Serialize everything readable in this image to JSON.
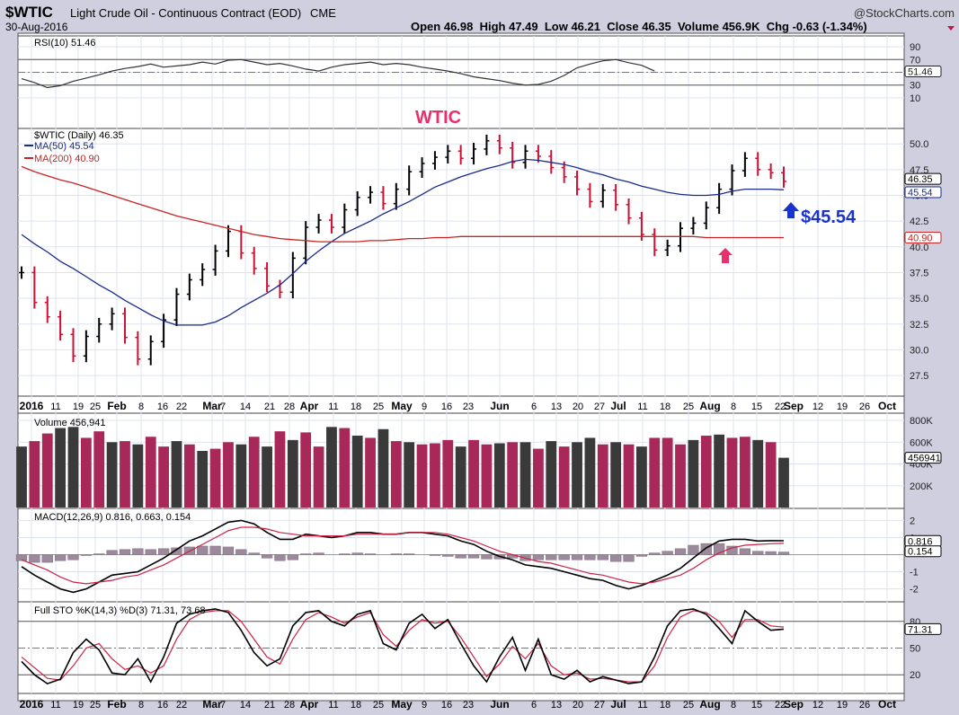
{
  "header": {
    "symbol": "$WTIC",
    "description": "Light Crude Oil - Continuous Contract (EOD)",
    "exchange": "CME",
    "brand": "@StockCharts.com",
    "date": "30-Aug-2016",
    "ohlc": "Open 46.98  High 47.49  Low 46.21  Close 46.35  Volume 456.9K  Chg -0.63 (-1.34%)"
  },
  "annotations": {
    "title": "WTIC",
    "price_callout": "$45.54",
    "colors": {
      "title": "#e8306c",
      "callout": "#1a33cc",
      "up_arrow": "#1a33cc",
      "pink_arrow": "#e8306c"
    }
  },
  "x_axis_labels": [
    "2016",
    "11",
    "19",
    "25",
    "Feb",
    "8",
    "16",
    "22",
    "Mar",
    "7",
    "14",
    "21",
    "28",
    "Apr",
    "11",
    "18",
    "25",
    "May",
    "9",
    "16",
    "23",
    "Jun",
    "6",
    "13",
    "20",
    "27",
    "Jul",
    "11",
    "18",
    "25",
    "Aug",
    "8",
    "15",
    "22",
    "Sep",
    "12",
    "19",
    "26",
    "Oct"
  ],
  "chart_data": [
    {
      "panel": "rsi",
      "type": "line",
      "legend": "RSI(10) 51.46",
      "last_value_label": "51.46",
      "ylim": [
        0,
        100
      ],
      "y_ticks": [
        90,
        70,
        50,
        30,
        10
      ],
      "y_tick_labels": [
        "90",
        "70",
        "50",
        "30",
        "10"
      ],
      "reference_lines": [
        70,
        30
      ],
      "series": [
        {
          "name": "RSI(10)",
          "values": [
            40,
            34,
            26,
            29,
            36,
            41,
            46,
            52,
            56,
            59,
            63,
            58,
            60,
            62,
            66,
            63,
            69,
            70,
            66,
            62,
            64,
            60,
            55,
            52,
            58,
            62,
            64,
            66,
            62,
            64,
            62,
            58,
            55,
            52,
            48,
            43,
            40,
            37,
            33,
            30,
            31,
            36,
            45,
            57,
            63,
            68,
            70,
            65,
            61,
            52
          ]
        }
      ]
    },
    {
      "panel": "price",
      "type": "candlestick",
      "legend": [
        "$WTIC (Daily) 46.35",
        "MA(50) 45.54",
        "MA(200) 40.90"
      ],
      "last_value_labels": [
        "46.35",
        "45.54",
        "40.90"
      ],
      "ylim": [
        25.5,
        51.5
      ],
      "y_ticks": [
        50.0,
        47.5,
        45.0,
        42.5,
        40.0,
        37.5,
        35.0,
        32.5,
        30.0,
        27.5
      ],
      "y_tick_labels": [
        "50.0",
        "47.5",
        "45.0",
        "42.5",
        "40.0",
        "37.5",
        "35.0",
        "32.5",
        "30.0",
        "27.5"
      ],
      "close": [
        37.5,
        34.6,
        33.2,
        31.5,
        29.4,
        31.3,
        32.5,
        33.5,
        31.2,
        29.1,
        30.8,
        32.9,
        35.4,
        36.8,
        37.8,
        39.6,
        41.5,
        39.4,
        37.9,
        36.2,
        35.6,
        38.9,
        41.9,
        42.6,
        41.9,
        43.6,
        44.8,
        45.3,
        44.2,
        45.6,
        47.3,
        48.1,
        48.7,
        49.3,
        48.6,
        49.5,
        50.3,
        49.6,
        48.2,
        49.3,
        48.8,
        47.7,
        46.8,
        45.6,
        44.4,
        45.5,
        44.1,
        42.8,
        41.2,
        39.7,
        40.1,
        41.8,
        42.3,
        43.8,
        45.6,
        47.4,
        48.6,
        47.5,
        47.2,
        46.35
      ],
      "ma50": [
        41.2,
        40.3,
        39.5,
        38.6,
        37.9,
        37.1,
        36.3,
        35.6,
        34.8,
        34.1,
        33.4,
        32.8,
        32.4,
        32.4,
        32.4,
        32.7,
        33.3,
        34.1,
        34.8,
        35.5,
        36.3,
        37.4,
        38.6,
        39.6,
        40.5,
        41.3,
        41.9,
        42.5,
        43.2,
        43.8,
        44.4,
        45.1,
        45.8,
        46.3,
        46.8,
        47.2,
        47.6,
        47.9,
        48.3,
        48.5,
        48.4,
        48.2,
        48.0,
        47.7,
        47.3,
        47.0,
        46.6,
        46.3,
        45.9,
        45.6,
        45.3,
        45.1,
        45.0,
        45.0,
        45.1,
        45.4,
        45.6,
        45.6,
        45.6,
        45.54
      ],
      "ma200": [
        47.8,
        47.3,
        46.9,
        46.5,
        46.2,
        45.8,
        45.4,
        45.0,
        44.6,
        44.2,
        43.8,
        43.4,
        43.0,
        42.7,
        42.4,
        42.1,
        41.8,
        41.5,
        41.2,
        41.0,
        40.8,
        40.7,
        40.6,
        40.5,
        40.5,
        40.5,
        40.5,
        40.6,
        40.6,
        40.7,
        40.8,
        40.8,
        40.9,
        40.9,
        41.0,
        41.0,
        41.0,
        41.0,
        41.0,
        41.0,
        41.0,
        41.0,
        41.0,
        41.0,
        41.0,
        41.0,
        41.0,
        41.0,
        41.0,
        41.0,
        41.0,
        41.0,
        41.0,
        40.9,
        40.9,
        40.9,
        40.9,
        40.9,
        40.9,
        40.9
      ]
    },
    {
      "panel": "volume",
      "type": "bar",
      "legend": "Volume 456,941",
      "last_value_label": "456941",
      "ylim": [
        0,
        850000
      ],
      "y_ticks": [
        800000,
        600000,
        400000,
        200000
      ],
      "y_tick_labels": [
        "800K",
        "600K",
        "400K",
        "200K"
      ],
      "values": [
        560000,
        610000,
        680000,
        730000,
        740000,
        640000,
        700000,
        600000,
        610000,
        580000,
        650000,
        560000,
        610000,
        580000,
        520000,
        540000,
        600000,
        580000,
        650000,
        560000,
        700000,
        620000,
        690000,
        560000,
        740000,
        730000,
        660000,
        640000,
        720000,
        610000,
        600000,
        580000,
        590000,
        620000,
        560000,
        620000,
        580000,
        590000,
        600000,
        600000,
        540000,
        610000,
        560000,
        600000,
        640000,
        580000,
        600000,
        580000,
        560000,
        640000,
        640000,
        580000,
        620000,
        660000,
        670000,
        640000,
        650000,
        620000,
        600000,
        456941
      ],
      "up": [
        false,
        true,
        true,
        false,
        false,
        true,
        true,
        false,
        true,
        false,
        true,
        true,
        false,
        true,
        false,
        true,
        true,
        false,
        true,
        false,
        true,
        false,
        true,
        true,
        false,
        true,
        false,
        true,
        false,
        true,
        false,
        true,
        true,
        true,
        false,
        true,
        true,
        false,
        true,
        false,
        true,
        false,
        true,
        false,
        false,
        true,
        false,
        true,
        false,
        true,
        true,
        true,
        false,
        true,
        false,
        true,
        true,
        false,
        true,
        false
      ]
    },
    {
      "panel": "macd",
      "type": "line",
      "legend": "MACD(12,26,9) 0.816, 0.663, 0.154",
      "last_value_labels": [
        "0.816",
        "0.154"
      ],
      "ylim": [
        -2.6,
        2.6
      ],
      "y_ticks": [
        2,
        1,
        -1,
        -2
      ],
      "y_tick_labels": [
        "2",
        "1",
        "-1",
        "-2"
      ],
      "series": [
        {
          "name": "MACD",
          "values": [
            -0.7,
            -1.2,
            -1.6,
            -2.0,
            -2.2,
            -2.0,
            -1.6,
            -1.2,
            -1.1,
            -1.0,
            -0.6,
            -0.2,
            0.3,
            0.8,
            1.1,
            1.5,
            1.9,
            2.0,
            1.8,
            1.3,
            0.9,
            0.9,
            1.2,
            1.1,
            1.0,
            1.1,
            1.3,
            1.3,
            1.2,
            1.2,
            1.3,
            1.3,
            1.2,
            1.1,
            0.8,
            0.6,
            0.2,
            -0.1,
            -0.3,
            -0.6,
            -0.7,
            -0.8,
            -1.0,
            -1.2,
            -1.4,
            -1.5,
            -1.8,
            -2.0,
            -1.8,
            -1.5,
            -1.2,
            -0.8,
            -0.2,
            0.4,
            0.8,
            0.9,
            0.9,
            0.8,
            0.82,
            0.816
          ]
        },
        {
          "name": "Signal",
          "values": [
            -0.3,
            -0.6,
            -0.9,
            -1.3,
            -1.6,
            -1.7,
            -1.6,
            -1.5,
            -1.3,
            -1.2,
            -0.9,
            -0.6,
            -0.2,
            0.2,
            0.6,
            1.0,
            1.4,
            1.6,
            1.6,
            1.5,
            1.3,
            1.2,
            1.1,
            1.1,
            1.1,
            1.1,
            1.2,
            1.2,
            1.2,
            1.2,
            1.3,
            1.3,
            1.3,
            1.2,
            1.0,
            0.8,
            0.5,
            0.2,
            0.0,
            -0.2,
            -0.4,
            -0.5,
            -0.7,
            -0.9,
            -1.1,
            -1.2,
            -1.4,
            -1.6,
            -1.7,
            -1.6,
            -1.4,
            -1.2,
            -0.8,
            -0.3,
            0.1,
            0.4,
            0.55,
            0.6,
            0.64,
            0.663
          ]
        }
      ],
      "histogram": [
        -0.35,
        -0.45,
        -0.45,
        -0.35,
        -0.3,
        -0.05,
        0.05,
        0.25,
        0.3,
        0.35,
        0.3,
        0.35,
        0.4,
        0.45,
        0.5,
        0.5,
        0.45,
        0.3,
        0.1,
        -0.2,
        -0.35,
        -0.3,
        0.05,
        0.1,
        0.0,
        0.05,
        0.1,
        0.05,
        0.0,
        0.05,
        0.05,
        0.0,
        -0.05,
        -0.1,
        -0.2,
        -0.2,
        -0.25,
        -0.25,
        -0.2,
        -0.35,
        -0.3,
        -0.3,
        -0.3,
        -0.3,
        -0.3,
        -0.3,
        -0.4,
        -0.4,
        -0.1,
        0.1,
        0.2,
        0.35,
        0.55,
        0.65,
        0.65,
        0.5,
        0.35,
        0.2,
        0.18,
        0.154
      ]
    },
    {
      "panel": "stochastic",
      "type": "line",
      "legend": "Full STO %K(14,3) %D(3) 71.31, 73.68",
      "last_value_label": "71.31",
      "ylim": [
        0,
        100
      ],
      "y_ticks": [
        80,
        50,
        20
      ],
      "y_tick_labels": [
        "80",
        "50",
        "20"
      ],
      "reference_lines": [
        80,
        50,
        20
      ],
      "series": [
        {
          "name": "%K",
          "values": [
            35,
            20,
            10,
            15,
            45,
            60,
            48,
            22,
            20,
            38,
            12,
            40,
            78,
            88,
            92,
            94,
            90,
            70,
            45,
            30,
            38,
            75,
            90,
            92,
            80,
            75,
            88,
            92,
            55,
            48,
            78,
            88,
            72,
            82,
            55,
            30,
            12,
            40,
            62,
            25,
            60,
            20,
            15,
            25,
            12,
            18,
            14,
            10,
            12,
            40,
            75,
            92,
            94,
            88,
            72,
            55,
            92,
            80,
            70,
            71.31
          ]
        },
        {
          "name": "%D",
          "values": [
            40,
            28,
            16,
            14,
            30,
            50,
            55,
            38,
            26,
            30,
            22,
            30,
            60,
            82,
            90,
            92,
            92,
            80,
            60,
            40,
            32,
            60,
            82,
            90,
            85,
            78,
            85,
            90,
            65,
            52,
            70,
            82,
            78,
            80,
            62,
            40,
            18,
            32,
            52,
            38,
            55,
            30,
            20,
            22,
            15,
            16,
            14,
            12,
            12,
            30,
            62,
            85,
            92,
            90,
            80,
            62,
            82,
            82,
            75,
            73.68
          ]
        }
      ]
    }
  ]
}
